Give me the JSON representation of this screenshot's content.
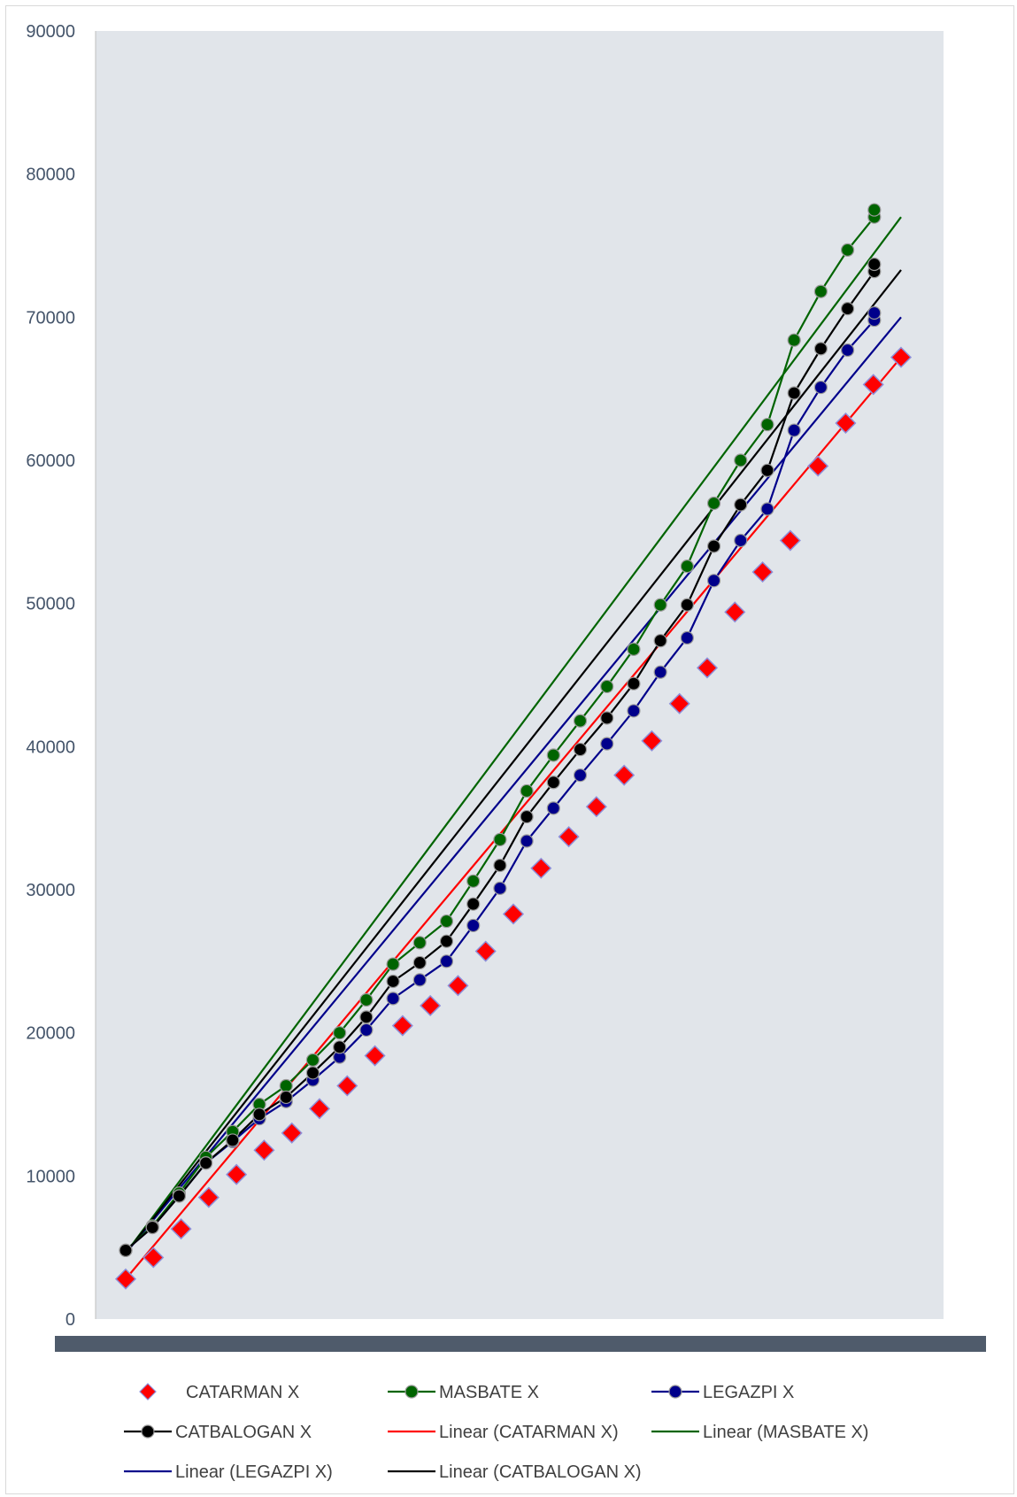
{
  "chart_data": {
    "type": "scatter",
    "title": "",
    "xlabel": "",
    "ylabel": "",
    "ylim": [
      0,
      90000
    ],
    "yticks": [
      0,
      10000,
      20000,
      30000,
      40000,
      50000,
      60000,
      70000,
      80000,
      90000
    ],
    "grid": false,
    "legend_position": "bottom",
    "plot_background": "#e1e5ea",
    "series": [
      {
        "name": "CATARMAN X",
        "color": "#ff0000",
        "marker": "diamond",
        "line": false,
        "values": [
          2800,
          4300,
          6300,
          8500,
          10100,
          11800,
          13000,
          14700,
          16300,
          18400,
          20500,
          21900,
          23300,
          25700,
          28300,
          31500,
          33700,
          35800,
          38000,
          40400,
          43000,
          45500,
          49400,
          52200,
          54400,
          59600,
          62600,
          65300,
          67200
        ]
      },
      {
        "name": "MASBATE X",
        "color": "#006400",
        "marker": "circle",
        "line": true,
        "values": [
          4800,
          6500,
          8800,
          11300,
          13100,
          15000,
          16300,
          18100,
          20000,
          22300,
          24800,
          26300,
          27800,
          30600,
          33500,
          36900,
          39400,
          41800,
          44200,
          46800,
          49900,
          52600,
          57000,
          60000,
          62500,
          68400,
          71800,
          74700,
          77000,
          77500
        ]
      },
      {
        "name": "LEGAZPI X",
        "color": "#00008b",
        "marker": "circle",
        "line": true,
        "values": [
          4800,
          6400,
          8600,
          10900,
          12400,
          14000,
          15200,
          16700,
          18300,
          20200,
          22400,
          23700,
          25000,
          27500,
          30100,
          33400,
          35700,
          38000,
          40200,
          42500,
          45200,
          47600,
          51600,
          54400,
          56600,
          62100,
          65100,
          67700,
          69800,
          70300
        ]
      },
      {
        "name": "CATBALOGAN X",
        "color": "#000000",
        "marker": "circle",
        "line": true,
        "values": [
          4800,
          6400,
          8600,
          10900,
          12500,
          14300,
          15500,
          17200,
          19000,
          21100,
          23600,
          24900,
          26400,
          29000,
          31700,
          35100,
          37500,
          39800,
          42000,
          44400,
          47400,
          49900,
          54000,
          56900,
          59300,
          64700,
          67800,
          70600,
          73200,
          73700
        ]
      }
    ],
    "trendlines": [
      {
        "name": "Linear (CATARMAN X)",
        "color": "#ff0000",
        "from": 2800,
        "to": 67200
      },
      {
        "name": "Linear (MASBATE X)",
        "color": "#006400",
        "from": 4600,
        "to": 77000
      },
      {
        "name": "Linear (LEGAZPI X)",
        "color": "#00008b",
        "from": 4600,
        "to": 70000
      },
      {
        "name": "Linear (CATBALOGAN X)",
        "color": "#000000",
        "from": 4600,
        "to": 73300
      }
    ]
  }
}
